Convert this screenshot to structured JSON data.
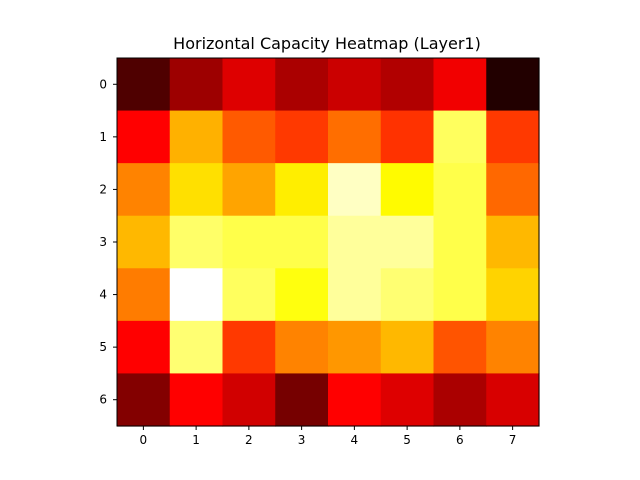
{
  "chart_data": {
    "type": "heatmap",
    "title": "Horizontal Capacity Heatmap (Layer1)",
    "colormap": "hot",
    "vmin": 0,
    "vmax": 1,
    "x_tick_labels": [
      "0",
      "1",
      "2",
      "3",
      "4",
      "5",
      "6",
      "7"
    ],
    "y_tick_labels": [
      "0",
      "1",
      "2",
      "3",
      "4",
      "5",
      "6"
    ],
    "values": [
      [
        0.08,
        0.2,
        0.3,
        0.22,
        0.27,
        0.23,
        0.33,
        0.01
      ],
      [
        0.35,
        0.63,
        0.5,
        0.45,
        0.53,
        0.44,
        0.84,
        0.45
      ],
      [
        0.56,
        0.7,
        0.61,
        0.72,
        0.94,
        0.74,
        0.82,
        0.52
      ],
      [
        0.64,
        0.85,
        0.82,
        0.82,
        0.9,
        0.9,
        0.82,
        0.64
      ],
      [
        0.55,
        1.0,
        0.84,
        0.76,
        0.9,
        0.86,
        0.82,
        0.68
      ],
      [
        0.36,
        0.86,
        0.45,
        0.56,
        0.59,
        0.64,
        0.49,
        0.56
      ],
      [
        0.16,
        0.35,
        0.28,
        0.14,
        0.35,
        0.3,
        0.22,
        0.29
      ]
    ],
    "grid": false
  }
}
